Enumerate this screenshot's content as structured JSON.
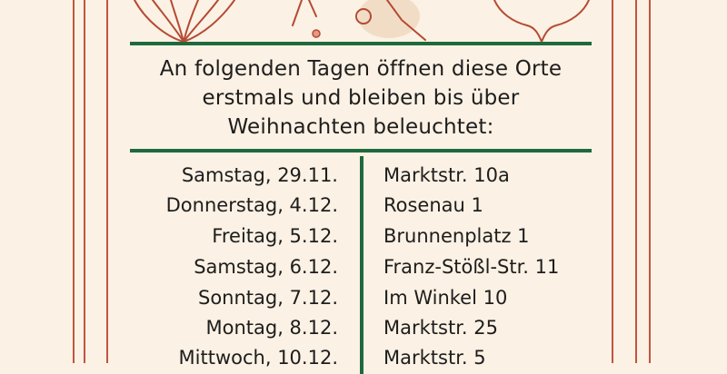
{
  "intro": {
    "line1": "An folgenden Tagen öffnen diese Orte",
    "line2": "erstmals und bleiben bis über",
    "line3": "Weihnachten beleuchtet:"
  },
  "schedule": [
    {
      "date": "Samstag, 29.11.",
      "place": "Marktstr. 10a"
    },
    {
      "date": "Donnerstag, 4.12.",
      "place": "Rosenau 1"
    },
    {
      "date": "Freitag, 5.12.",
      "place": "Brunnenplatz 1"
    },
    {
      "date": "Samstag, 6.12.",
      "place": "Franz-Stößl-Str. 11"
    },
    {
      "date": "Sonntag, 7.12.",
      "place": "Im Winkel 10"
    },
    {
      "date": "Montag, 8.12.",
      "place": "Marktstr. 25"
    },
    {
      "date": "Mittwoch, 10.12.",
      "place": "Marktstr. 5"
    }
  ],
  "colors": {
    "background": "#fbf1e4",
    "border": "#c0553f",
    "rule": "#1e6a3c",
    "text": "#1d1d1d"
  }
}
